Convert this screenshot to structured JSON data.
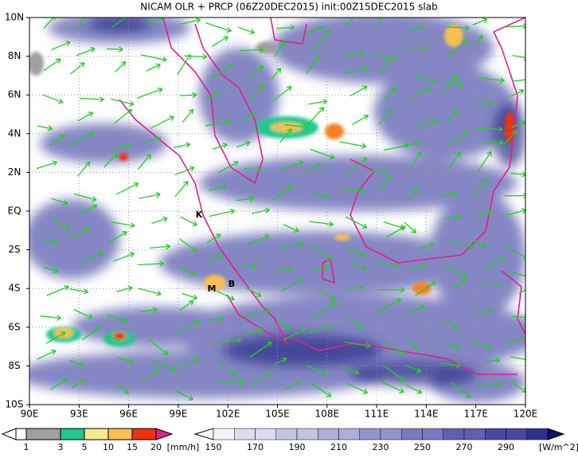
{
  "title": "NICAM OLR + PRCP (06Z20DEC2015) init:00Z15DEC2015 slab",
  "lat_labels": [
    "10N",
    "8N",
    "6N",
    "4N",
    "2N",
    "EQ",
    "2S",
    "4S",
    "6S",
    "8S",
    "10S"
  ],
  "lon_labels": [
    "90E",
    "93E",
    "96E",
    "99E",
    "102E",
    "105E",
    "108E",
    "111E",
    "114E",
    "117E",
    "120E"
  ],
  "stations": [
    "K",
    "M",
    "B"
  ],
  "prcp_colorbar": {
    "ticks": [
      1,
      3,
      5,
      10,
      15,
      20
    ],
    "unit": "[mm/h]"
  },
  "olr_colorbar": {
    "ticks": [
      150,
      170,
      190,
      210,
      230,
      250,
      270,
      290
    ],
    "unit": "[W/m^2]"
  }
}
